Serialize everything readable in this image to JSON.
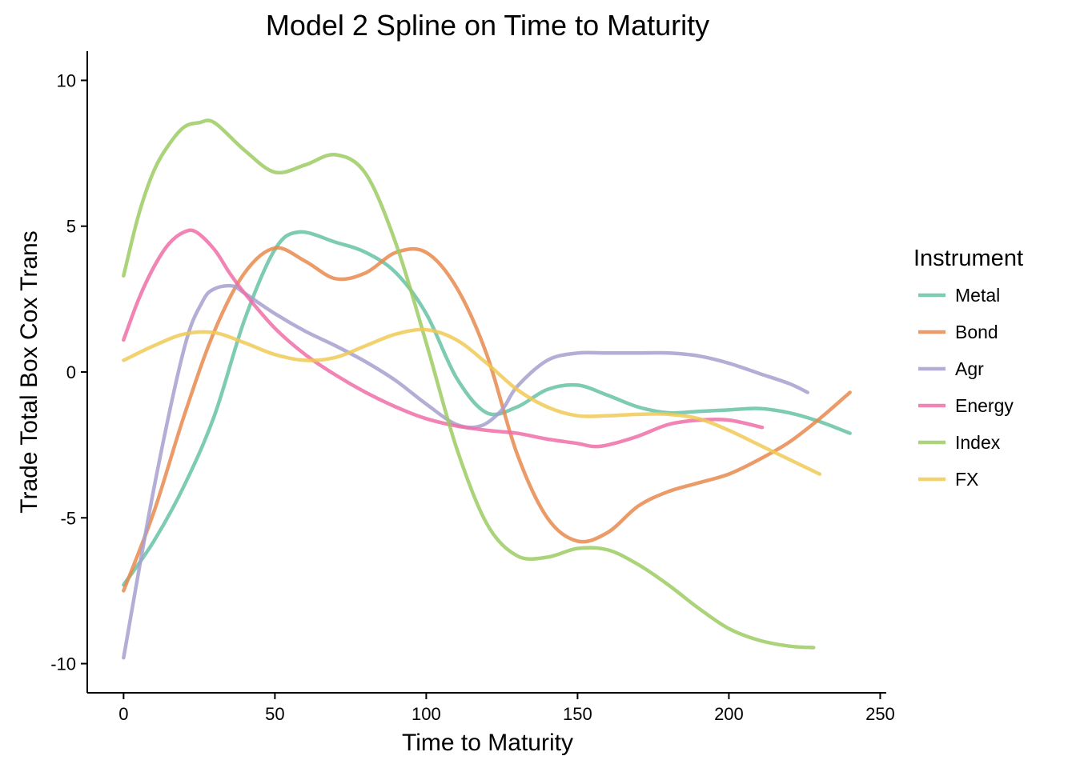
{
  "chart_data": {
    "type": "line",
    "title": "Model 2 Spline on Time to Maturity",
    "xlabel": "Time to Maturity",
    "ylabel": "Trade Total Box Cox Trans",
    "xlim": [
      -12,
      252
    ],
    "ylim": [
      -11,
      11
    ],
    "xticks": [
      0,
      50,
      100,
      150,
      200,
      250
    ],
    "yticks": [
      10,
      5,
      0,
      -5,
      -10
    ],
    "xtick_labels": [
      "0",
      "50",
      "100",
      "150",
      "200",
      "250"
    ],
    "ytick_labels": [
      "10",
      "5",
      "0",
      "-5",
      "-10"
    ],
    "grid": false,
    "legend": {
      "title": "Instrument",
      "position": "right"
    },
    "series": [
      {
        "name": "Metal",
        "color": "#66c2a5",
        "x": [
          0,
          10,
          20,
          30,
          40,
          50,
          58,
          70,
          80,
          90,
          100,
          110,
          120,
          130,
          140,
          150,
          160,
          170,
          180,
          190,
          200,
          210,
          220,
          230,
          240
        ],
        "y": [
          -7.3,
          -5.8,
          -3.9,
          -1.5,
          1.8,
          4.2,
          4.8,
          4.45,
          4.1,
          3.4,
          2.0,
          -0.2,
          -1.4,
          -1.2,
          -0.6,
          -0.45,
          -0.8,
          -1.2,
          -1.4,
          -1.35,
          -1.3,
          -1.25,
          -1.4,
          -1.7,
          -2.1
        ]
      },
      {
        "name": "Bond",
        "color": "#e78a4e",
        "x": [
          0,
          10,
          20,
          30,
          40,
          50,
          60,
          70,
          80,
          90,
          100,
          110,
          120,
          130,
          140,
          150,
          160,
          170,
          180,
          190,
          200,
          210,
          220,
          230,
          240
        ],
        "y": [
          -7.5,
          -4.8,
          -1.5,
          1.4,
          3.4,
          4.25,
          3.8,
          3.2,
          3.4,
          4.1,
          4.1,
          2.9,
          0.6,
          -2.8,
          -5.0,
          -5.8,
          -5.5,
          -4.6,
          -4.1,
          -3.8,
          -3.5,
          -3.0,
          -2.4,
          -1.6,
          -0.7
        ]
      },
      {
        "name": "Agr",
        "color": "#a6a0cf",
        "x": [
          0,
          10,
          20,
          26,
          30,
          36,
          40,
          50,
          60,
          70,
          80,
          90,
          100,
          110,
          118,
          125,
          130,
          140,
          150,
          160,
          170,
          180,
          190,
          200,
          210,
          220,
          226
        ],
        "y": [
          -9.8,
          -4.0,
          0.8,
          2.4,
          2.85,
          2.95,
          2.7,
          2.0,
          1.4,
          0.9,
          0.35,
          -0.3,
          -1.1,
          -1.8,
          -1.85,
          -1.3,
          -0.5,
          0.4,
          0.65,
          0.65,
          0.65,
          0.65,
          0.55,
          0.3,
          -0.05,
          -0.4,
          -0.7
        ]
      },
      {
        "name": "Energy",
        "color": "#ef6ea7",
        "x": [
          0,
          5,
          10,
          15,
          20,
          24,
          30,
          35,
          40,
          50,
          60,
          70,
          80,
          90,
          100,
          110,
          120,
          130,
          140,
          150,
          155,
          160,
          170,
          180,
          190,
          200,
          211
        ],
        "y": [
          1.1,
          2.5,
          3.6,
          4.4,
          4.8,
          4.8,
          4.2,
          3.4,
          2.7,
          1.5,
          0.6,
          -0.1,
          -0.7,
          -1.2,
          -1.6,
          -1.85,
          -2.0,
          -2.1,
          -2.3,
          -2.45,
          -2.55,
          -2.5,
          -2.2,
          -1.8,
          -1.65,
          -1.65,
          -1.9
        ]
      },
      {
        "name": "Index",
        "color": "#9ccb63",
        "x": [
          0,
          5,
          10,
          15,
          20,
          25,
          30,
          40,
          50,
          60,
          70,
          80,
          90,
          100,
          110,
          120,
          130,
          140,
          150,
          160,
          170,
          180,
          190,
          200,
          210,
          220,
          228
        ],
        "y": [
          3.3,
          5.4,
          6.9,
          7.8,
          8.4,
          8.55,
          8.55,
          7.6,
          6.85,
          7.1,
          7.45,
          6.8,
          4.4,
          1.0,
          -2.6,
          -5.2,
          -6.3,
          -6.35,
          -6.05,
          -6.1,
          -6.6,
          -7.3,
          -8.1,
          -8.8,
          -9.2,
          -9.4,
          -9.45
        ]
      },
      {
        "name": "FX",
        "color": "#f0c956",
        "x": [
          0,
          10,
          20,
          30,
          40,
          50,
          60,
          70,
          80,
          90,
          100,
          110,
          120,
          130,
          140,
          150,
          160,
          170,
          180,
          190,
          200,
          210,
          220,
          230
        ],
        "y": [
          0.4,
          0.9,
          1.3,
          1.35,
          1.0,
          0.6,
          0.4,
          0.5,
          0.9,
          1.3,
          1.45,
          1.1,
          0.3,
          -0.6,
          -1.2,
          -1.5,
          -1.5,
          -1.45,
          -1.45,
          -1.6,
          -2.0,
          -2.5,
          -3.0,
          -3.5
        ]
      }
    ]
  }
}
